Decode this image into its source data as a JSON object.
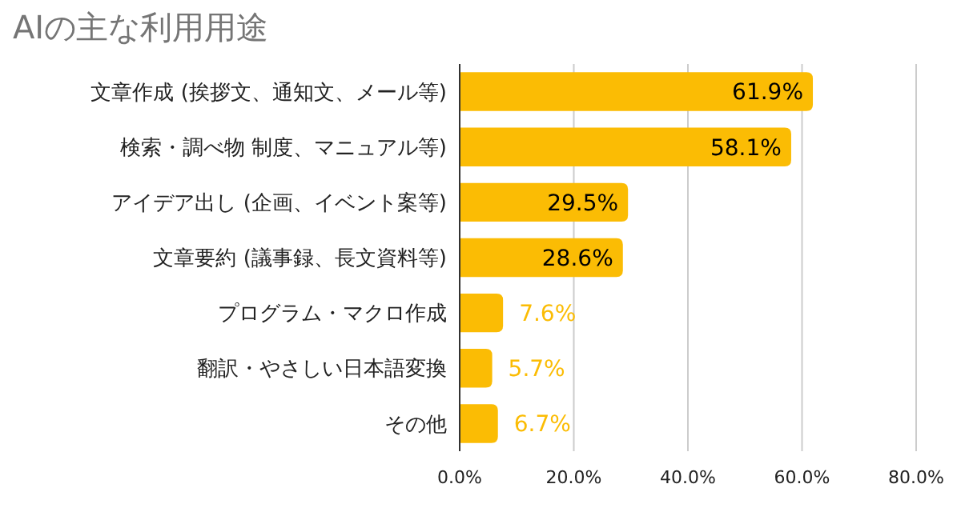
{
  "chart_data": {
    "type": "bar",
    "orientation": "horizontal",
    "title": "AIの主な利用用途",
    "categories": [
      "文章作成 (挨拶文、通知文、メール等)",
      "検索・調べ物 制度、マニュアル等)",
      "アイデア出し (企画、イベント案等)",
      "文章要約 (議事録、長文資料等)",
      "プログラム・マクロ作成",
      "翻訳・やさしい日本語変換",
      "その他"
    ],
    "values": [
      61.9,
      58.1,
      29.5,
      28.6,
      7.6,
      5.7,
      6.7
    ],
    "value_labels": [
      "61.9%",
      "58.1%",
      "29.5%",
      "28.6%",
      "7.6%",
      "5.7%",
      "6.7%"
    ],
    "color": "#fbbc04",
    "xlim": [
      0,
      80
    ],
    "xticks": [
      {
        "value": 0,
        "label": "0.0%"
      },
      {
        "value": 20,
        "label": "20.0%"
      },
      {
        "value": 40,
        "label": "40.0%"
      },
      {
        "value": 60,
        "label": "60.0%"
      },
      {
        "value": 80,
        "label": "80.0%"
      }
    ],
    "grid": "x"
  }
}
